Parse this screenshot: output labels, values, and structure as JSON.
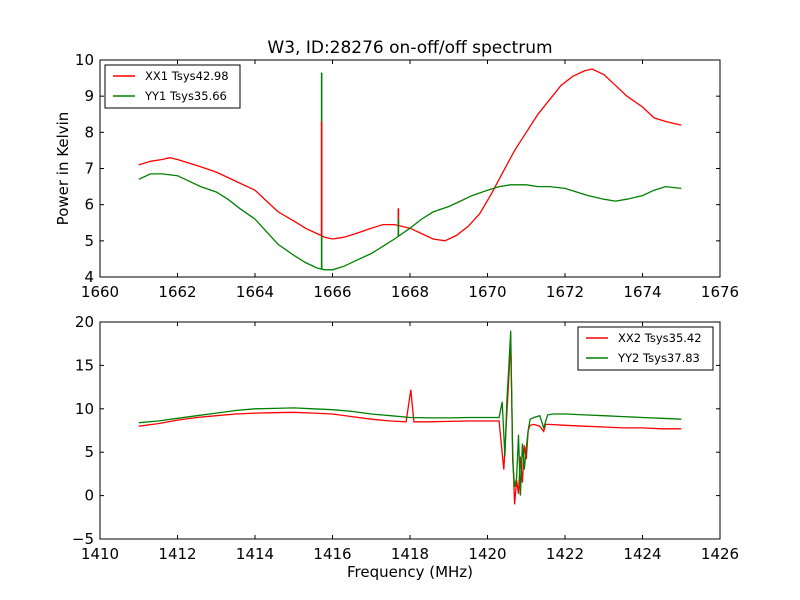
{
  "figure": {
    "title": "W3, ID:28276 on-off/off spectrum"
  },
  "chart_data": [
    {
      "type": "line",
      "title": "W3, ID:28276 on-off/off spectrum",
      "xlabel": "",
      "ylabel": "Power in Kelvin",
      "xlim": [
        1660,
        1676
      ],
      "ylim": [
        4,
        10
      ],
      "xticks": [
        1660,
        1662,
        1664,
        1666,
        1668,
        1670,
        1672,
        1674,
        1676
      ],
      "yticks": [
        4,
        5,
        6,
        7,
        8,
        9,
        10
      ],
      "grid": false,
      "legend_position": "top-left",
      "series": [
        {
          "name": "XX1 Tsys42.98",
          "color": "#ff0000",
          "x": [
            1661.0,
            1661.3,
            1661.6,
            1661.8,
            1662.0,
            1662.3,
            1662.6,
            1663.0,
            1663.3,
            1663.6,
            1664.0,
            1664.3,
            1664.6,
            1665.0,
            1665.3,
            1665.6,
            1665.8,
            1666.0,
            1666.3,
            1666.6,
            1667.0,
            1667.3,
            1667.6,
            1668.0,
            1668.3,
            1668.6,
            1668.9,
            1669.2,
            1669.5,
            1669.8,
            1670.1,
            1670.4,
            1670.7,
            1671.0,
            1671.3,
            1671.6,
            1671.9,
            1672.2,
            1672.5,
            1672.7,
            1673.0,
            1673.3,
            1673.6,
            1674.0,
            1674.3,
            1674.6,
            1675.0
          ],
          "y": [
            7.1,
            7.2,
            7.25,
            7.3,
            7.25,
            7.15,
            7.05,
            6.9,
            6.75,
            6.6,
            6.4,
            6.1,
            5.8,
            5.55,
            5.35,
            5.2,
            5.1,
            5.05,
            5.1,
            5.2,
            5.35,
            5.45,
            5.45,
            5.35,
            5.2,
            5.05,
            5.0,
            5.15,
            5.4,
            5.75,
            6.3,
            6.9,
            7.5,
            8.0,
            8.5,
            8.9,
            9.3,
            9.55,
            9.7,
            9.75,
            9.6,
            9.3,
            9.0,
            8.7,
            8.4,
            8.3,
            8.2
          ]
        },
        {
          "name": "YY1 Tsys35.66",
          "color": "#008000",
          "x": [
            1661.0,
            1661.3,
            1661.6,
            1662.0,
            1662.3,
            1662.6,
            1663.0,
            1663.3,
            1663.6,
            1664.0,
            1664.3,
            1664.6,
            1665.0,
            1665.3,
            1665.6,
            1665.8,
            1666.0,
            1666.3,
            1666.6,
            1667.0,
            1667.3,
            1667.6,
            1668.0,
            1668.3,
            1668.6,
            1669.0,
            1669.3,
            1669.6,
            1670.0,
            1670.3,
            1670.6,
            1671.0,
            1671.3,
            1671.6,
            1672.0,
            1672.3,
            1672.6,
            1673.0,
            1673.3,
            1673.6,
            1674.0,
            1674.3,
            1674.6,
            1675.0
          ],
          "y": [
            6.7,
            6.85,
            6.85,
            6.8,
            6.65,
            6.5,
            6.35,
            6.15,
            5.9,
            5.6,
            5.25,
            4.9,
            4.6,
            4.4,
            4.25,
            4.2,
            4.2,
            4.3,
            4.45,
            4.65,
            4.85,
            5.05,
            5.35,
            5.6,
            5.8,
            5.95,
            6.1,
            6.25,
            6.4,
            6.5,
            6.55,
            6.55,
            6.5,
            6.5,
            6.45,
            6.35,
            6.25,
            6.15,
            6.1,
            6.15,
            6.25,
            6.4,
            6.5,
            6.45
          ]
        }
      ],
      "spikes": [
        {
          "series": 1,
          "x": 1665.72,
          "y": 9.65
        },
        {
          "series": 0,
          "x": 1665.72,
          "y": 8.3
        },
        {
          "series": 0,
          "x": 1667.7,
          "y": 5.9
        },
        {
          "series": 1,
          "x": 1667.7,
          "y": 5.6
        }
      ]
    },
    {
      "type": "line",
      "title": "",
      "xlabel": "Frequency (MHz)",
      "ylabel": "",
      "xlim": [
        1410,
        1426
      ],
      "ylim": [
        -5,
        20
      ],
      "xticks": [
        1410,
        1412,
        1414,
        1416,
        1418,
        1420,
        1422,
        1424,
        1426
      ],
      "yticks": [
        -5,
        0,
        5,
        10,
        15,
        20
      ],
      "grid": false,
      "legend_position": "top-right",
      "series": [
        {
          "name": "XX2 Tsys35.42",
          "color": "#ff0000",
          "x": [
            1411.0,
            1411.5,
            1412.0,
            1412.5,
            1413.0,
            1413.5,
            1414.0,
            1414.5,
            1415.0,
            1415.5,
            1416.0,
            1416.5,
            1417.0,
            1417.5,
            1417.9,
            1418.02,
            1418.1,
            1418.5,
            1419.0,
            1419.5,
            1420.0,
            1420.3,
            1420.42,
            1420.5,
            1420.55,
            1420.6,
            1420.65,
            1420.7,
            1420.75,
            1420.8,
            1420.85,
            1420.9,
            1420.95,
            1421.0,
            1421.05,
            1421.1,
            1421.2,
            1421.35,
            1421.45,
            1421.5,
            1421.6,
            1422.0,
            1422.5,
            1423.0,
            1423.5,
            1424.0,
            1424.5,
            1425.0
          ],
          "y": [
            8.0,
            8.3,
            8.7,
            9.0,
            9.2,
            9.4,
            9.5,
            9.55,
            9.6,
            9.5,
            9.4,
            9.1,
            8.8,
            8.6,
            8.5,
            12.2,
            8.5,
            8.5,
            8.55,
            8.6,
            8.6,
            8.6,
            3.0,
            9.5,
            13.5,
            17.8,
            5.0,
            -1.0,
            1.8,
            0.2,
            4.5,
            1.5,
            5.8,
            4.2,
            7.5,
            8.1,
            8.2,
            8.0,
            7.4,
            8.2,
            8.2,
            8.1,
            8.0,
            7.9,
            7.8,
            7.8,
            7.7,
            7.7
          ]
        },
        {
          "name": "YY2 Tsys37.83",
          "color": "#008000",
          "x": [
            1411.0,
            1411.5,
            1412.0,
            1412.5,
            1413.0,
            1413.5,
            1414.0,
            1414.5,
            1415.0,
            1415.5,
            1416.0,
            1416.5,
            1417.0,
            1417.5,
            1418.0,
            1418.5,
            1419.0,
            1419.5,
            1420.0,
            1420.3,
            1420.38,
            1420.45,
            1420.5,
            1420.55,
            1420.6,
            1420.65,
            1420.7,
            1420.75,
            1420.8,
            1420.85,
            1420.9,
            1420.95,
            1421.0,
            1421.05,
            1421.1,
            1421.2,
            1421.35,
            1421.45,
            1421.55,
            1421.7,
            1422.0,
            1422.5,
            1423.0,
            1423.5,
            1424.0,
            1424.5,
            1425.0
          ],
          "y": [
            8.4,
            8.6,
            8.9,
            9.2,
            9.5,
            9.8,
            10.0,
            10.05,
            10.1,
            10.0,
            9.9,
            9.7,
            9.4,
            9.2,
            9.0,
            8.95,
            8.95,
            9.0,
            9.0,
            9.0,
            10.8,
            4.5,
            11.0,
            14.8,
            19.0,
            4.0,
            1.0,
            2.0,
            7.0,
            0.0,
            6.0,
            3.0,
            5.5,
            7.5,
            8.8,
            9.0,
            9.2,
            7.8,
            9.3,
            9.4,
            9.4,
            9.3,
            9.2,
            9.1,
            9.0,
            8.9,
            8.8
          ]
        }
      ],
      "spikes": []
    }
  ]
}
